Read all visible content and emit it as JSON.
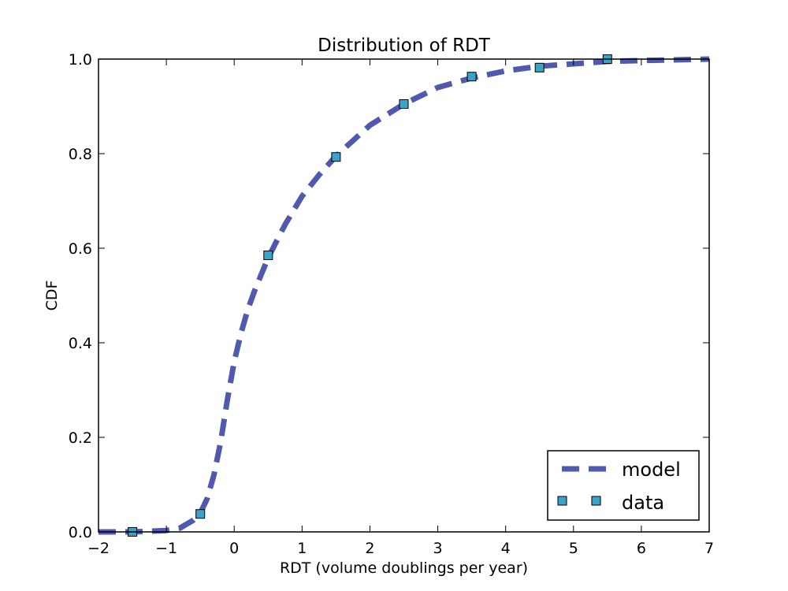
{
  "chart_data": {
    "type": "line",
    "title": "Distribution of RDT",
    "xlabel": "RDT (volume doublings per year)",
    "ylabel": "CDF",
    "xlim": [
      -2,
      7
    ],
    "ylim": [
      0,
      1
    ],
    "xticks": [
      -2,
      -1,
      0,
      1,
      2,
      3,
      4,
      5,
      6,
      7
    ],
    "xtick_labels": [
      "−2",
      "−1",
      "0",
      "1",
      "2",
      "3",
      "4",
      "5",
      "6",
      "7"
    ],
    "yticks": [
      0,
      0.2,
      0.4,
      0.6,
      0.8,
      1.0
    ],
    "ytick_labels": [
      "0.0",
      "0.2",
      "0.4",
      "0.6",
      "0.8",
      "1.0"
    ],
    "grid": false,
    "legend": "lower-right",
    "series": [
      {
        "name": "model",
        "style": "dashed line",
        "color": "#5059ad",
        "x": [
          -2.0,
          -1.5,
          -1.0,
          -0.8,
          -0.6,
          -0.5,
          -0.4,
          -0.3,
          -0.2,
          -0.1,
          0.0,
          0.1,
          0.2,
          0.3,
          0.5,
          0.75,
          1.0,
          1.25,
          1.5,
          2.0,
          2.5,
          3.0,
          3.5,
          4.0,
          4.5,
          5.0,
          5.5,
          6.0,
          7.0
        ],
        "y": [
          0.0,
          0.0,
          0.003,
          0.008,
          0.025,
          0.04,
          0.07,
          0.12,
          0.19,
          0.28,
          0.36,
          0.42,
          0.47,
          0.51,
          0.58,
          0.65,
          0.71,
          0.755,
          0.795,
          0.86,
          0.905,
          0.94,
          0.96,
          0.975,
          0.985,
          0.99,
          0.995,
          0.997,
          1.0
        ]
      },
      {
        "name": "data",
        "style": "square markers",
        "color": "#3aa3c8",
        "x": [
          -1.5,
          -0.5,
          0.5,
          1.5,
          2.5,
          3.5,
          4.5,
          5.5
        ],
        "y": [
          0.0,
          0.038,
          0.585,
          0.793,
          0.905,
          0.963,
          0.982,
          1.0
        ]
      }
    ]
  }
}
